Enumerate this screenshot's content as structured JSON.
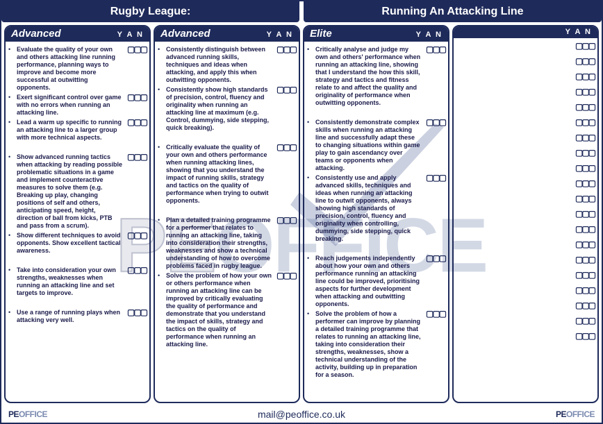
{
  "titles": {
    "left": "Rugby League:",
    "right": "Running An Attacking Line"
  },
  "watermark": {
    "part1": "PE",
    "part2": "OFFICE"
  },
  "footer": {
    "brand1": "PE",
    "brand2": "OFFICE",
    "email": "mail@peoffice.co.uk"
  },
  "yan": "Y A N",
  "box_glyph": "▢▢▢",
  "columns": [
    {
      "level": "Advanced",
      "groups": [
        [
          "Evaluate the quality of your own and others attacking line running performance, planning ways to improve and become more successful at outwitting opponents.",
          "Exert significant control over game with no errors when running an attacking line.",
          "Lead a warm up specific to running an attacking line to a larger group with more technical aspects."
        ],
        [
          "Show advanced running tactics when attacking by reading possible problematic situations in a game and implement counteractive measures to solve them (e.g. Breaking up play, changing positions of self and others, anticipating speed, height, direction of ball from kicks, PTB and pass from a scrum).",
          "Show different techniques to avoid opponents.  Show excellent tactical awareness."
        ],
        [
          "Take into consideration your own strengths, weaknesses when running an attacking line and set targets to improve."
        ],
        [
          "Use a range of running plays when attacking very well."
        ]
      ]
    },
    {
      "level": "Advanced",
      "groups": [
        [
          "Consistently distinguish between advanced running skills, techniques and ideas when attacking, and apply this when outwitting opponents.",
          "Consistently show high standards of precision, control, fluency and originality when running an attacking line at maximum (e.g. Control, dummying, side stepping, quick breaking)."
        ],
        [
          "Critically evaluate the quality of your own and others performance when running attacking lines, showing that you understand the impact of running skills, strategy and tactics on the quality of performance when trying to outwit opponents."
        ],
        [
          "Plan a detailed training programme for a performer that relates to running an attacking line, taking into consideration their strengths, weaknesses and show a technical understanding of how to overcome problems faced in rugby league.",
          "Solve the problem of how your own or others performance when running an attacking line can be improved by critically evaluating the quality of performance and demonstrate that you understand the impact of skills, strategy and tactics on the quality of performance when running an attacking line."
        ]
      ]
    },
    {
      "level": "Elite",
      "groups": [
        [
          "Critically analyse and judge my own and others' performance when running an attacking line, showing that I understand the how this skill, strategy and tactics and fitness relate to and affect the quality and originality of performance when outwitting opponents."
        ],
        [
          "Consistently demonstrate complex skills when running an attacking line and successfully adapt these to changing situations within game play to gain ascendancy over teams or opponents when attacking.",
          "Consistently use and apply advanced skills, techniques and ideas when running an attacking line to outwit opponents, always showing high standards of precision, control, fluency and originality when controlling, dummying, side stepping, quick breaking."
        ],
        [
          "Reach judgements independently about how your own and others performance running an attacking line could be improved, prioritising aspects for further development when attacking and outwitting opponents.",
          "Solve the problem of how a performer can improve by planning a detailed training programme that relates to running an attacking line, taking into consideration their strengths, weaknesses, show a technical understanding of the activity, building up in preparation for a season."
        ]
      ]
    },
    {
      "level": "",
      "groups": [],
      "empty_rows": 20
    }
  ]
}
